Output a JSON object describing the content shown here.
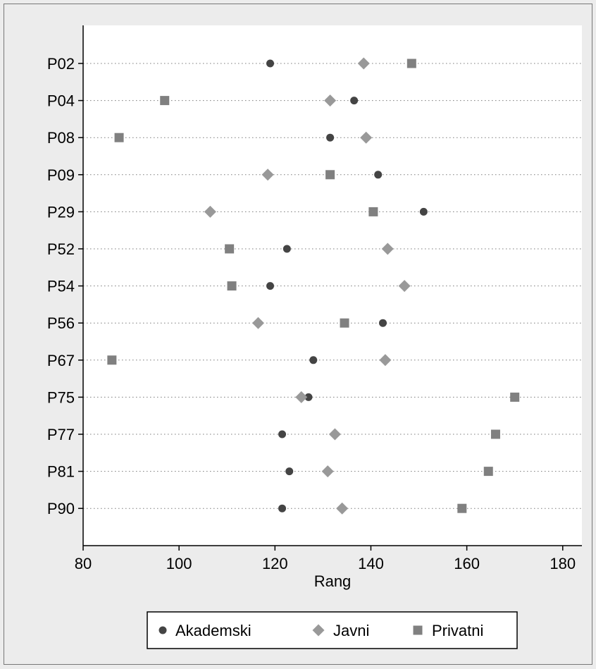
{
  "chart_data": {
    "type": "scatter",
    "title": "",
    "xlabel": "Rang",
    "ylabel": "",
    "xlim": [
      80,
      184
    ],
    "x_ticks": [
      80,
      100,
      120,
      140,
      160,
      180
    ],
    "grid": "dotted horizontal lines per category",
    "legend_position": "bottom",
    "categories": [
      "P02",
      "P04",
      "P08",
      "P09",
      "P29",
      "P52",
      "P54",
      "P56",
      "P67",
      "P75",
      "P77",
      "P81",
      "P90"
    ],
    "series": [
      {
        "name": "Akademski",
        "marker": "circle",
        "color": "#444444",
        "values": [
          119,
          136.5,
          131.5,
          141.5,
          151,
          122.5,
          119,
          142.5,
          128,
          127,
          121.5,
          123,
          121.5
        ]
      },
      {
        "name": "Javni",
        "marker": "diamond",
        "color": "#999999",
        "values": [
          138.5,
          131.5,
          139,
          118.5,
          106.5,
          143.5,
          147,
          116.5,
          143,
          125.5,
          132.5,
          131,
          134
        ]
      },
      {
        "name": "Privatni",
        "marker": "square",
        "color": "#808080",
        "values": [
          148.5,
          97,
          87.5,
          131.5,
          140.5,
          110.5,
          111,
          134.5,
          86,
          170,
          166,
          164.5,
          159
        ]
      }
    ]
  },
  "colors": {
    "page_background": "#ececec",
    "plot_background": "#ffffff",
    "grid": "#7a7a7a"
  }
}
